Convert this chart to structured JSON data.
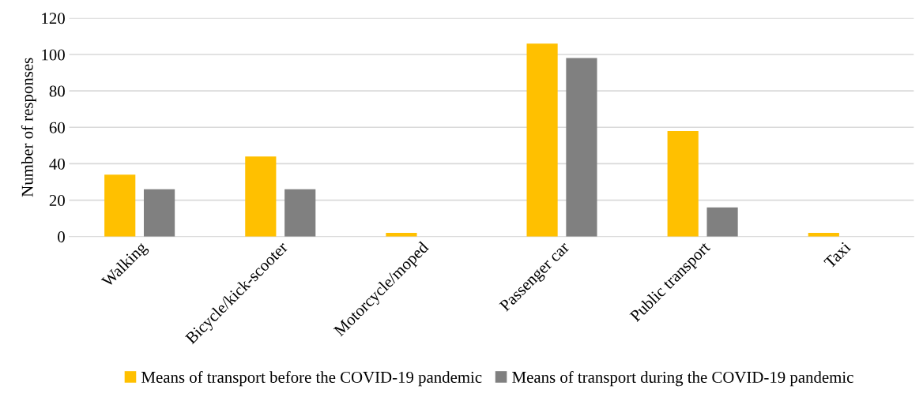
{
  "chart_data": {
    "type": "bar",
    "ylabel": "Number of responses",
    "categories": [
      "Walking",
      "Bicycle/kick-scooter",
      "Motorcycle/moped",
      "Passenger car",
      "Public transport",
      "Taxi"
    ],
    "series": [
      {
        "name": "Means of transport before the COVID-19 pandemic",
        "color": "#ffc000",
        "values": [
          34,
          44,
          2,
          106,
          58,
          2
        ]
      },
      {
        "name": "Means of transport during the COVID-19 pandemic",
        "color": "#808080",
        "values": [
          26,
          26,
          0,
          98,
          16,
          0
        ]
      }
    ],
    "ylim": [
      0,
      120
    ],
    "yticks": [
      0,
      20,
      40,
      60,
      80,
      100,
      120
    ],
    "grid": "y",
    "legend": "bottom"
  }
}
